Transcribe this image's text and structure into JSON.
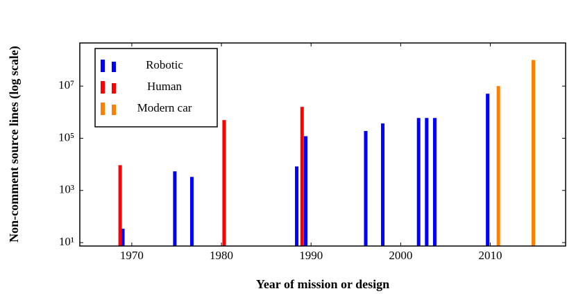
{
  "chart_data": {
    "type": "bar",
    "xlabel": "Year of mission or design",
    "ylabel": "Non-comment source lines (log scale)",
    "xlim": [
      1964.2,
      2018.4
    ],
    "xticks": [
      1970,
      1980,
      1990,
      2000,
      2010
    ],
    "ylim": [
      7.4,
      450000000
    ],
    "log_y": true,
    "yticks": [
      {
        "value": 10,
        "label": "10¹"
      },
      {
        "value": 1000,
        "label": "10³"
      },
      {
        "value": 100000,
        "label": "10⁵"
      },
      {
        "value": 10000000,
        "label": "10⁷"
      }
    ],
    "legend": "upper left",
    "series": [
      {
        "name": "Robotic",
        "color": "#0000ff",
        "x": [
          1969,
          1974.8,
          1976.7,
          1988.4,
          1989.4,
          1996.1,
          1998,
          2002,
          2002.9,
          2003.8,
          2009.7
        ],
        "values": [
          34,
          5400,
          3300,
          8300,
          120000,
          190000,
          370000,
          600000,
          600000,
          600000,
          5100000
        ]
      },
      {
        "name": "Human",
        "color": "#ff0000",
        "x": [
          1968.7,
          1980.3,
          1989
        ],
        "values": [
          9300,
          500000,
          1600000
        ]
      },
      {
        "name": "Modern car",
        "color": "#ff8000",
        "x": [
          2010.9,
          2014.8
        ],
        "values": [
          10000000,
          100000000
        ]
      }
    ]
  }
}
